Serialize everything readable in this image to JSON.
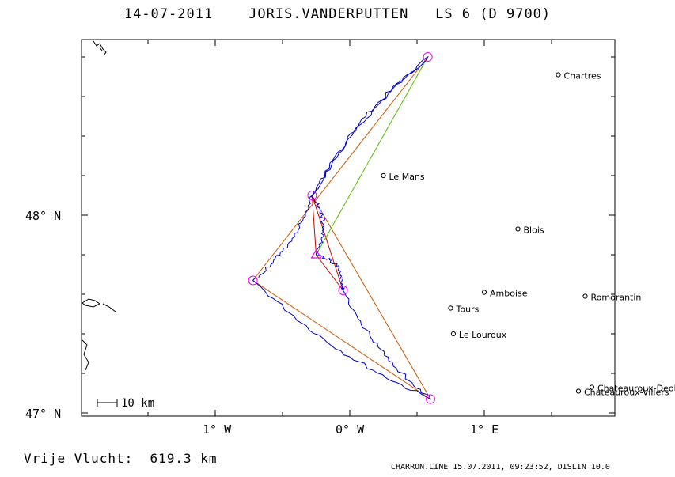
{
  "header": {
    "date": "14-07-2011",
    "pilot": "JORIS.VANDERPUTTEN",
    "glider": "LS 6 (D 9700)"
  },
  "axes": {
    "lat_labels": [
      "48° N",
      "47° N"
    ],
    "lon_labels": [
      "1° W",
      "0° W",
      "1° E"
    ]
  },
  "scale_label": "10 km",
  "cities": [
    {
      "name": "Chartres",
      "lon": 1.55,
      "lat": 48.71
    },
    {
      "name": "Le Mans",
      "lon": 0.25,
      "lat": 48.2
    },
    {
      "name": "Blois",
      "lon": 1.25,
      "lat": 47.93
    },
    {
      "name": "Amboise",
      "lon": 1.0,
      "lat": 47.61
    },
    {
      "name": "Romorantin",
      "lon": 1.75,
      "lat": 47.59
    },
    {
      "name": "Tours",
      "lon": 0.75,
      "lat": 47.53
    },
    {
      "name": "Le Louroux",
      "lon": 0.77,
      "lat": 47.4
    },
    {
      "name": "Chateauroux-Deols",
      "lon": 1.8,
      "lat": 47.13
    },
    {
      "name": "Chateauroux-Villers",
      "lon": 1.7,
      "lat": 47.11
    }
  ],
  "turnpoints": [
    {
      "lon": 0.58,
      "lat": 48.8
    },
    {
      "lon": -0.28,
      "lat": 48.1
    },
    {
      "lon": -0.72,
      "lat": 47.67
    },
    {
      "lon": -0.05,
      "lat": 47.62
    },
    {
      "lon": 0.6,
      "lat": 47.07
    }
  ],
  "start": {
    "lon": -0.25,
    "lat": 47.8
  },
  "distance": {
    "label": "Vrije Vlucht:",
    "value": "619.3 km"
  },
  "footer": "CHARRON.LINE 15.07.2011, 09:23:52, DISLIN 10.0",
  "colors": {
    "track": "#0000cc",
    "task_outer": "#cc5500",
    "task_inner": "#cc0000",
    "task_green": "#55bb00",
    "turnpoint": "#ee00ee"
  }
}
